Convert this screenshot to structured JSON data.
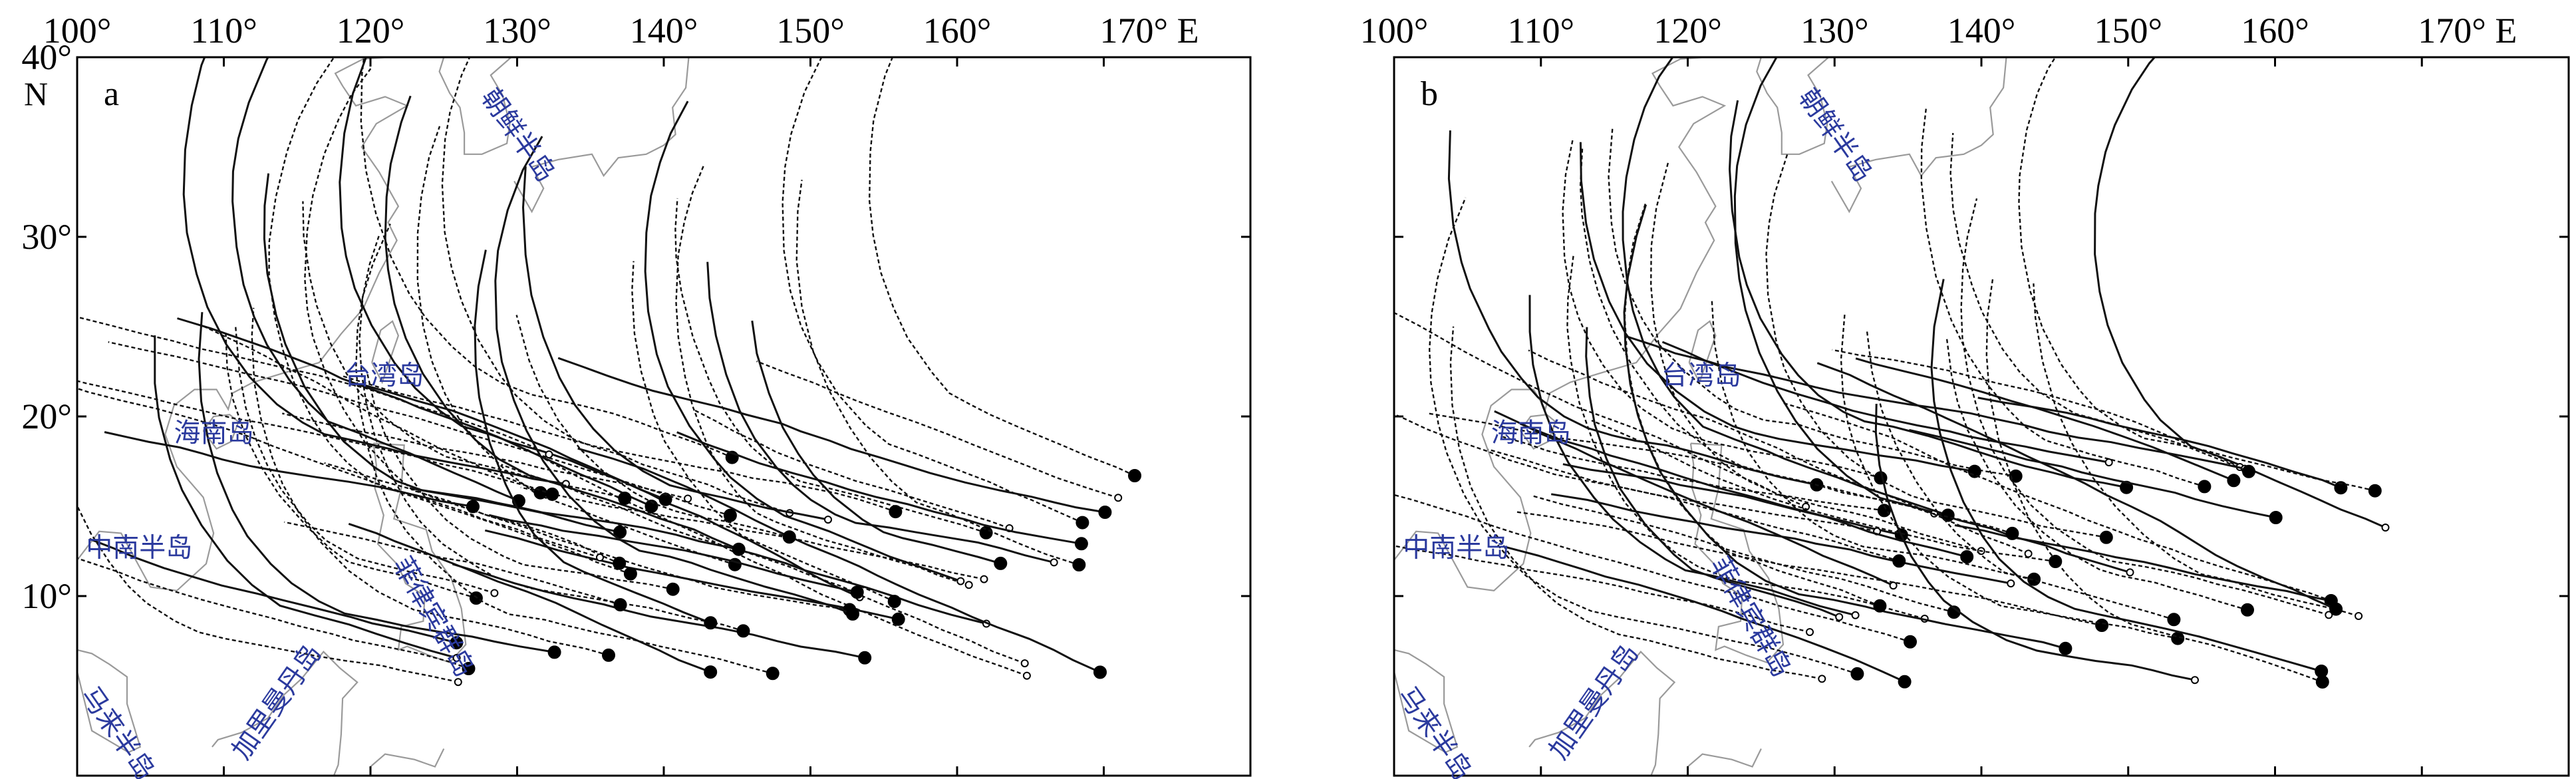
{
  "figure": {
    "longitude_labels": [
      "100°",
      "110°",
      "120°",
      "130°",
      "140°",
      "150°",
      "160°",
      "170° E"
    ],
    "latitude_labels": [
      "40°",
      "30°",
      "20°",
      "10°"
    ],
    "latitude_hemisphere": "N",
    "extent": {
      "lon_min": 100,
      "lon_max": 180,
      "lat_min": 0,
      "lat_max": 40
    }
  },
  "panels": [
    {
      "label": "a",
      "show_latitude_labels": true,
      "places": {
        "korea": "朝鲜半岛",
        "taiwan": "台湾岛",
        "hainan": "海南岛",
        "indochina": "中南半岛",
        "philippines": "菲律宾群岛",
        "malay": "马来半岛",
        "borneo": "加里曼丹岛"
      },
      "track_count_approx": 60
    },
    {
      "label": "b",
      "show_latitude_labels": false,
      "places": {
        "korea": "朝鲜半岛",
        "taiwan": "台湾岛",
        "hainan": "海南岛",
        "indochina": "中南半岛",
        "philippines": "菲律宾群岛",
        "malay": "马来半岛",
        "borneo": "加里曼丹岛"
      },
      "track_count_approx": 55
    }
  ],
  "colors": {
    "frame": "#000000",
    "coast": "#9a9a9a",
    "track": "#111111",
    "place_label": "#2b3a9e"
  }
}
